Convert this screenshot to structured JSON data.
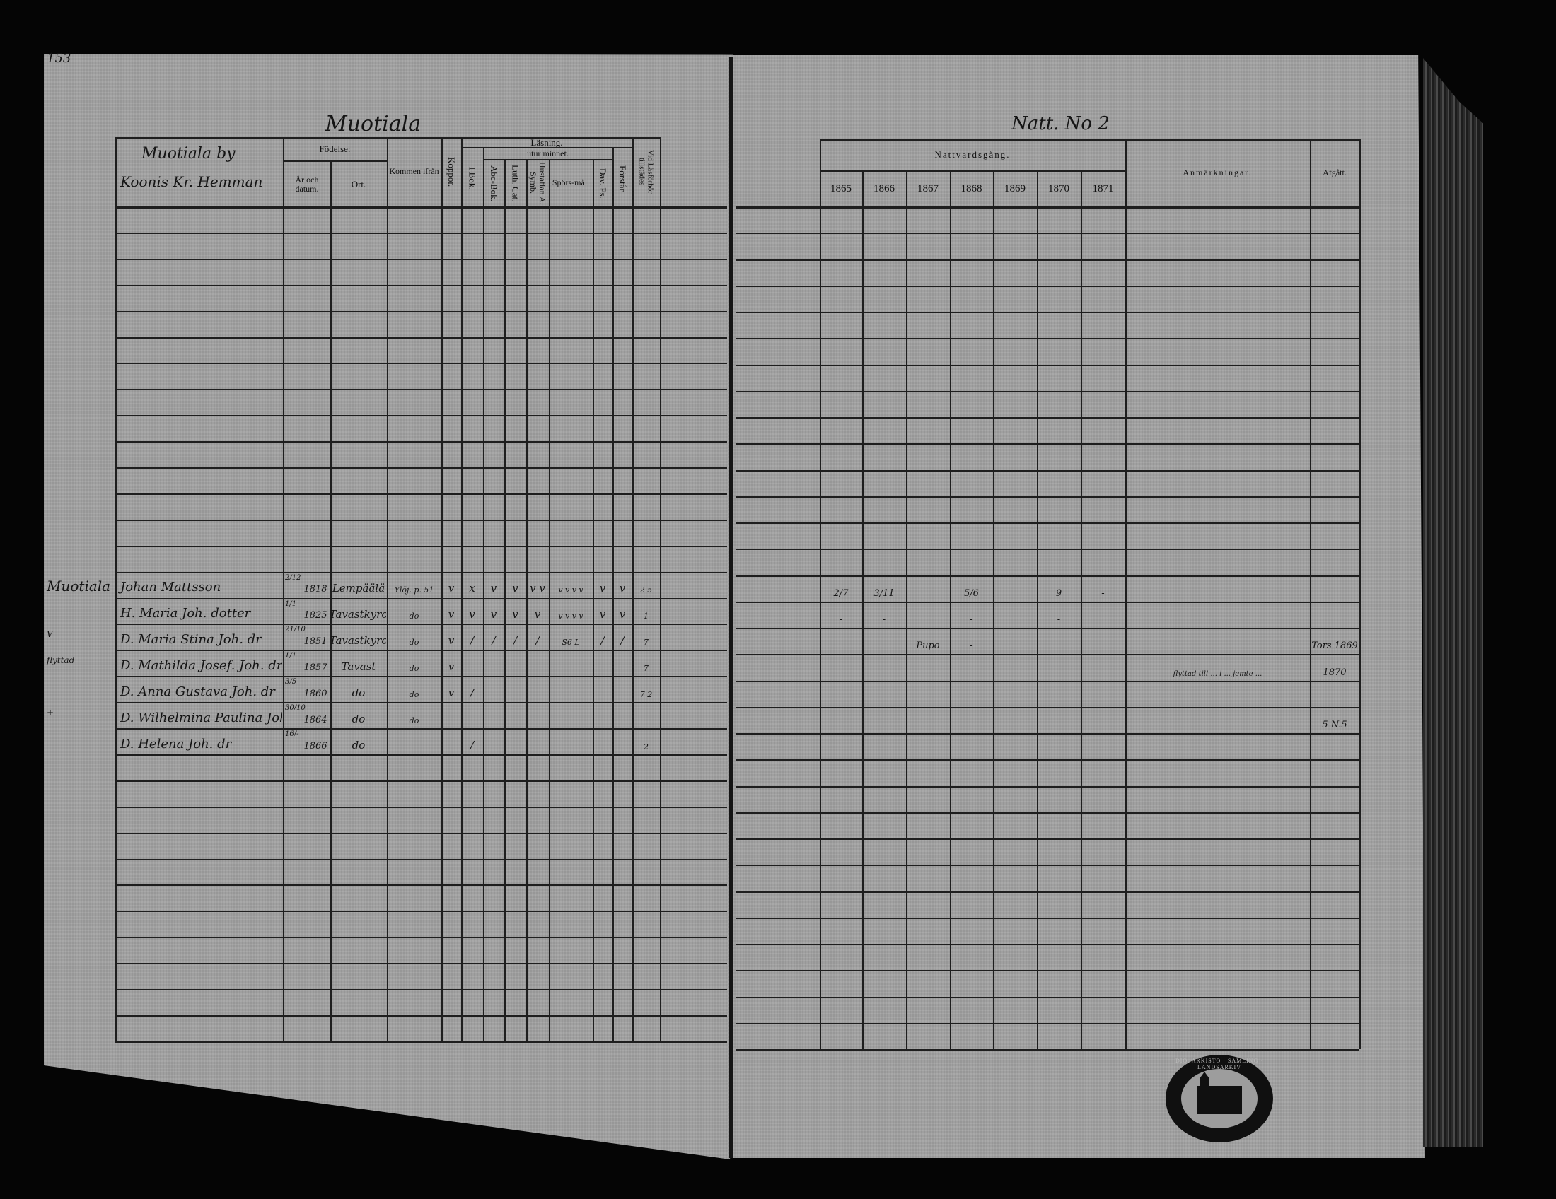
{
  "left_page": {
    "page_number": "153",
    "title": "Muotiala",
    "header": {
      "village": "Muotiala by",
      "homestead": "Koonis Kr. Hemman",
      "birth": "Födelse:",
      "birth_date": "År och datum.",
      "birth_place": "Ort.",
      "came_from": "Kommen ifrån",
      "smallpox": "Koppor.",
      "reading": "Läsning.",
      "in_book": "I Bok.",
      "by_heart": "utur minnet.",
      "abc_book": "Abc-Bok.",
      "luther_cat": "Luth. Cat.",
      "hustaflan": "Hustaflan A. Symb.",
      "questions": "Spörs-mål.",
      "dav_ps": "Dav. Ps.",
      "understands": "Förstår",
      "present": "Vid Läsförhör tillstädes"
    },
    "entries": [
      {
        "margin": "Muotiala",
        "name": "Johan Mattsson",
        "birth_day": "2/12",
        "birth_year": "1818",
        "birth_place": "Lempäälä",
        "from": "Ylöj. p. 51",
        "koppor": "v",
        "i_bok": "x",
        "abc": "v",
        "luth": "v",
        "hust": "v v",
        "spors": "v v v v",
        "dav": "v",
        "forstar": "v",
        "present": "2 5"
      },
      {
        "margin": "",
        "name": "H. Maria Joh. dotter",
        "birth_day": "1/1",
        "birth_year": "1825",
        "birth_place": "Tavastkyro",
        "from": "do",
        "koppor": "v",
        "i_bok": "v",
        "abc": "v",
        "luth": "v",
        "hust": "v",
        "spors": "v v v v",
        "dav": "v",
        "forstar": "v",
        "present": "1"
      },
      {
        "margin": "V",
        "name": "D. Maria Stina Joh. dr",
        "birth_day": "21/10",
        "birth_year": "1851",
        "birth_place": "Tavastkyro",
        "from": "do",
        "koppor": "v",
        "i_bok": "/",
        "abc": "/",
        "luth": "/",
        "hust": "/",
        "spors": "S6 L",
        "dav": "/",
        "forstar": "/",
        "present": "7"
      },
      {
        "margin": "flyttad",
        "name": "D. Mathilda Josef. Joh. dr",
        "birth_day": "1/1",
        "birth_year": "1857",
        "birth_place": "Tavast",
        "from": "do",
        "koppor": "v",
        "i_bok": "",
        "abc": "",
        "luth": "",
        "hust": "",
        "spors": "",
        "dav": "",
        "forstar": "",
        "present": "7"
      },
      {
        "margin": "",
        "name": "D. Anna Gustava Joh. dr",
        "birth_day": "3/5",
        "birth_year": "1860",
        "birth_place": "do",
        "from": "do",
        "koppor": "v",
        "i_bok": "/",
        "abc": "",
        "luth": "",
        "hust": "",
        "spors": "",
        "dav": "",
        "forstar": "",
        "present": "7 2"
      },
      {
        "margin": "+",
        "name": "D. Wilhelmina Paulina Joh. dr",
        "birth_day": "30/10",
        "birth_year": "1864",
        "birth_place": "do",
        "from": "do",
        "koppor": "",
        "i_bok": "",
        "abc": "",
        "luth": "",
        "hust": "",
        "spors": "",
        "dav": "",
        "forstar": "",
        "present": ""
      },
      {
        "margin": "",
        "name": "D. Helena Joh. dr",
        "birth_day": "16/-",
        "birth_year": "1866",
        "birth_place": "do",
        "from": "",
        "koppor": "",
        "i_bok": "/",
        "abc": "",
        "luth": "",
        "hust": "",
        "spors": "",
        "dav": "",
        "forstar": "",
        "present": "2"
      }
    ]
  },
  "right_page": {
    "title": "Natt. No 2",
    "header": {
      "communion": "Nattvardsgång.",
      "years": [
        "1865",
        "1866",
        "1867",
        "1868",
        "1869",
        "1870",
        "1871"
      ],
      "remarks": "Anmärkningar.",
      "departed": "Afgått."
    },
    "entries": [
      {
        "communion": [
          "2/7",
          "3/11",
          "",
          "5/6",
          "",
          "9",
          "-"
        ],
        "remarks": "",
        "departed": ""
      },
      {
        "communion": [
          "-",
          "-",
          "",
          "-",
          "",
          "-",
          ""
        ],
        "remarks": "",
        "departed": ""
      },
      {
        "communion": [
          "",
          "",
          "Pupo",
          "-",
          "",
          "",
          ""
        ],
        "remarks": "",
        "departed": "Tors 1869"
      },
      {
        "communion": [
          "",
          "",
          "",
          "",
          "",
          "",
          ""
        ],
        "remarks": "flyttad till ... i ... jemte ... ",
        "departed": "1870"
      },
      {
        "communion": [
          "",
          "",
          "",
          "",
          "",
          "",
          ""
        ],
        "remarks": "",
        "departed": ""
      },
      {
        "communion": [
          "",
          "",
          "",
          "",
          "",
          "",
          ""
        ],
        "remarks": "",
        "departed": "5 N.5"
      },
      {
        "communion": [
          "",
          "",
          "",
          "",
          "",
          "",
          ""
        ],
        "remarks": "",
        "departed": ""
      }
    ]
  },
  "stamp": {
    "text": "DIÖ. ARKISTO · SAMLING · LANDSARKIV"
  }
}
